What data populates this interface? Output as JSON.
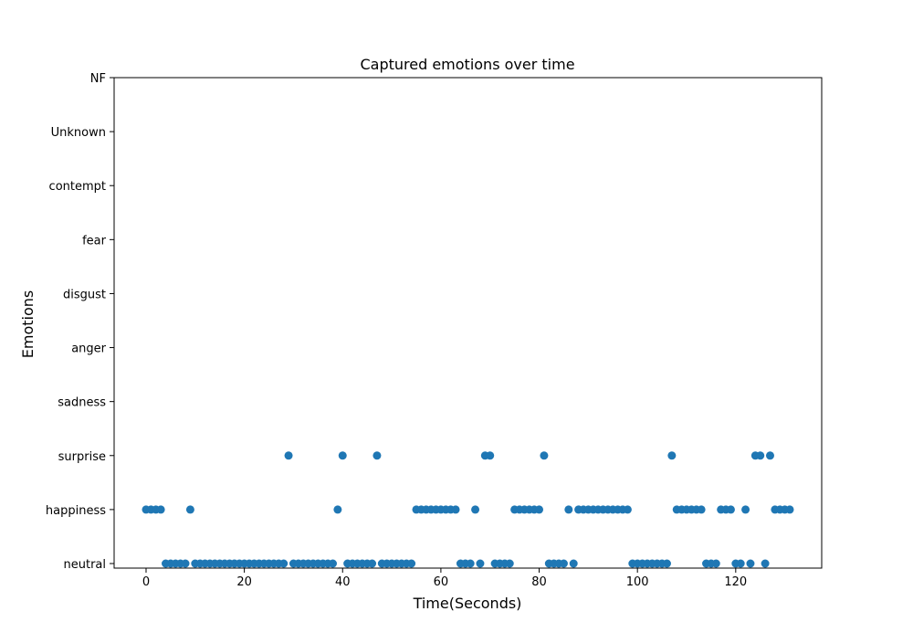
{
  "chart_data": {
    "type": "scatter",
    "title": "Captured emotions over time",
    "xlabel": "Time(Seconds)",
    "ylabel": "Emotions",
    "xlim": [
      -6.5,
      137.5
    ],
    "x_ticks": [
      0,
      20,
      40,
      60,
      80,
      100,
      120
    ],
    "categories": [
      "neutral",
      "happiness",
      "surprise",
      "sadness",
      "anger",
      "disgust",
      "fear",
      "contempt",
      "Unknown",
      "NF"
    ],
    "grid": false,
    "legend": "none",
    "marker_color": "#1f77b4",
    "series": [
      {
        "x": [
          0,
          1,
          2,
          3,
          4,
          5,
          6,
          7,
          8,
          9,
          10,
          11,
          12,
          13,
          14,
          15,
          16,
          17,
          18,
          19,
          20,
          21,
          22,
          23,
          24,
          25,
          26,
          27,
          28,
          29,
          30,
          31,
          32,
          33,
          34,
          35,
          36,
          37,
          38,
          39,
          40,
          41,
          42,
          43,
          44,
          45,
          46,
          47,
          48,
          49,
          50,
          51,
          52,
          53,
          54,
          55,
          56,
          57,
          58,
          59,
          60,
          61,
          62,
          63,
          64,
          65,
          66,
          67,
          68,
          69,
          70,
          71,
          72,
          73,
          74,
          75,
          76,
          77,
          78,
          79,
          80,
          81,
          82,
          83,
          84,
          85,
          86,
          87,
          88,
          89,
          90,
          91,
          92,
          93,
          94,
          95,
          96,
          97,
          98,
          99,
          100,
          101,
          102,
          103,
          104,
          105,
          106,
          107,
          108,
          109,
          110,
          111,
          112,
          113,
          114,
          115,
          116,
          117,
          118,
          119,
          120,
          121,
          122,
          123,
          124,
          125,
          126,
          127,
          128,
          129,
          130,
          131
        ],
        "y": [
          "happiness",
          "happiness",
          "happiness",
          "happiness",
          "neutral",
          "neutral",
          "neutral",
          "neutral",
          "neutral",
          "happiness",
          "neutral",
          "neutral",
          "neutral",
          "neutral",
          "neutral",
          "neutral",
          "neutral",
          "neutral",
          "neutral",
          "neutral",
          "neutral",
          "neutral",
          "neutral",
          "neutral",
          "neutral",
          "neutral",
          "neutral",
          "neutral",
          "neutral",
          "surprise",
          "neutral",
          "neutral",
          "neutral",
          "neutral",
          "neutral",
          "neutral",
          "neutral",
          "neutral",
          "neutral",
          "happiness",
          "surprise",
          "neutral",
          "neutral",
          "neutral",
          "neutral",
          "neutral",
          "neutral",
          "surprise",
          "neutral",
          "neutral",
          "neutral",
          "neutral",
          "neutral",
          "neutral",
          "neutral",
          "happiness",
          "happiness",
          "happiness",
          "happiness",
          "happiness",
          "happiness",
          "happiness",
          "happiness",
          "happiness",
          "neutral",
          "neutral",
          "neutral",
          "happiness",
          "neutral",
          "surprise",
          "surprise",
          "neutral",
          "neutral",
          "neutral",
          "neutral",
          "happiness",
          "happiness",
          "happiness",
          "happiness",
          "happiness",
          "happiness",
          "surprise",
          "neutral",
          "neutral",
          "neutral",
          "neutral",
          "happiness",
          "neutral",
          "happiness",
          "happiness",
          "happiness",
          "happiness",
          "happiness",
          "happiness",
          "happiness",
          "happiness",
          "happiness",
          "happiness",
          "happiness",
          "neutral",
          "neutral",
          "neutral",
          "neutral",
          "neutral",
          "neutral",
          "neutral",
          "neutral",
          "surprise",
          "happiness",
          "happiness",
          "happiness",
          "happiness",
          "happiness",
          "happiness",
          "neutral",
          "neutral",
          "neutral",
          "happiness",
          "happiness",
          "happiness",
          "neutral",
          "neutral",
          "happiness",
          "neutral",
          "surprise",
          "surprise",
          "neutral",
          "surprise",
          "happiness",
          "happiness",
          "happiness",
          "happiness"
        ]
      }
    ]
  }
}
